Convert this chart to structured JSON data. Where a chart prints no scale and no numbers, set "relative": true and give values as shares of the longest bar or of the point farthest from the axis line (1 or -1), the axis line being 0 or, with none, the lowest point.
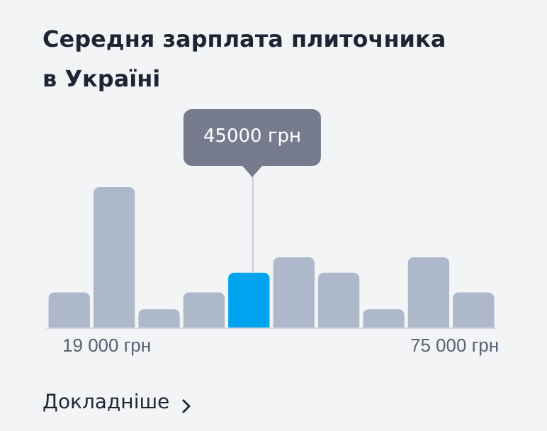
{
  "chart_data": {
    "type": "bar",
    "title": "Середня зарплата плиточника в Україні",
    "relative": true,
    "categories": [
      null,
      null,
      null,
      null,
      null,
      null,
      null,
      null,
      null,
      null
    ],
    "values": [
      0.25,
      1,
      0.13,
      0.25,
      0.39,
      0.5,
      0.39,
      0.13,
      0.5,
      0.25
    ],
    "colors": [
      "#adb8cb",
      "#adb8cb",
      "#adb8cb",
      "#adb8cb",
      "#00a3ee",
      "#adb8cb",
      "#adb8cb",
      "#adb8cb",
      "#adb8cb",
      "#adb8cb"
    ],
    "grid": false,
    "annotations": [
      "45000 грн",
      "19 000 грн",
      "75 000 грн",
      "Докладніше"
    ]
  }
}
